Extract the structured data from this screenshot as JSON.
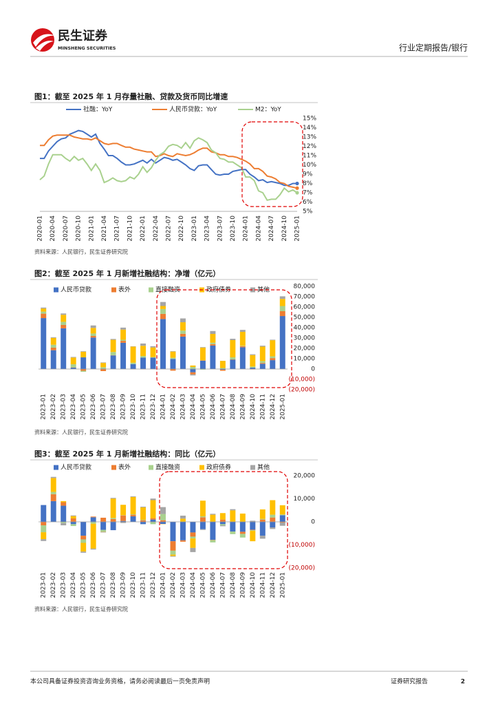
{
  "header": {
    "logo_cn": "民生证券",
    "logo_en": "MINSHENG SECURITIES",
    "report_type": "行业定期报告/银行"
  },
  "chart_data": [
    {
      "type": "line",
      "title": "图1：截至 2025 年 1 月存量社融、贷款及货币同比增速",
      "source": "资料来源：人民银行，民生证券研究院",
      "categories": [
        "2020-01",
        null,
        null,
        "2020-04",
        null,
        null,
        "2020-07",
        null,
        null,
        "2020-10",
        null,
        null,
        "2021-01",
        null,
        null,
        "2021-04",
        null,
        null,
        "2021-07",
        null,
        null,
        "2021-10",
        null,
        null,
        "2022-01",
        null,
        null,
        "2022-04",
        null,
        null,
        "2022-07",
        null,
        null,
        "2022-10",
        null,
        null,
        "2023-01",
        null,
        null,
        "2023-04",
        null,
        null,
        "2023-07",
        null,
        null,
        "2023-10",
        null,
        null,
        "2024-01",
        null,
        null,
        "2024-04",
        null,
        null,
        "2024-07",
        null,
        null,
        "2024-10",
        null,
        null,
        "2025-01"
      ],
      "series": [
        {
          "name": "社融：YoY",
          "color": "#4472c4",
          "values": [
            10.7,
            10.7,
            11.5,
            12.0,
            12.5,
            12.8,
            12.9,
            13.3,
            13.5,
            13.7,
            13.6,
            13.3,
            13.0,
            13.3,
            12.3,
            11.7,
            11.0,
            11.0,
            10.7,
            10.3,
            10.0,
            10.0,
            10.1,
            10.3,
            10.5,
            10.2,
            10.6,
            10.2,
            10.5,
            10.8,
            10.7,
            10.5,
            10.6,
            10.3,
            10.0,
            9.6,
            9.4,
            9.9,
            10.0,
            10.0,
            9.5,
            9.0,
            8.9,
            9.0,
            9.0,
            9.3,
            9.4,
            9.5,
            9.5,
            9.0,
            8.7,
            8.3,
            8.4,
            8.1,
            8.2,
            8.1,
            8.0,
            7.8,
            7.8,
            8.0,
            8.0
          ]
        },
        {
          "name": "人民币贷款：YoY",
          "color": "#ed7d31",
          "values": [
            12.1,
            12.1,
            12.7,
            13.1,
            13.2,
            13.2,
            13.2,
            13.2,
            13.0,
            12.9,
            12.8,
            12.8,
            12.7,
            12.9,
            12.6,
            12.3,
            12.2,
            12.3,
            12.3,
            12.1,
            11.9,
            11.9,
            11.7,
            11.6,
            11.5,
            11.4,
            11.4,
            10.9,
            11.0,
            11.2,
            11.0,
            10.9,
            11.2,
            11.1,
            11.0,
            11.1,
            11.3,
            11.6,
            11.8,
            11.8,
            11.4,
            11.3,
            11.1,
            11.1,
            10.9,
            10.9,
            10.8,
            10.6,
            10.4,
            10.1,
            9.6,
            9.6,
            9.3,
            8.8,
            8.7,
            8.5,
            8.1,
            8.0,
            7.7,
            7.6,
            7.5
          ]
        },
        {
          "name": "M2：YoY",
          "color": "#a9d18e",
          "values": [
            8.4,
            8.8,
            10.1,
            11.1,
            11.1,
            11.1,
            10.7,
            10.4,
            10.9,
            10.5,
            10.7,
            10.1,
            9.4,
            10.1,
            9.4,
            8.1,
            8.3,
            8.6,
            8.3,
            8.2,
            8.3,
            8.7,
            8.5,
            9.0,
            9.8,
            9.2,
            9.7,
            10.5,
            11.1,
            11.4,
            12.0,
            12.2,
            12.1,
            11.8,
            12.4,
            11.8,
            12.6,
            12.9,
            12.7,
            12.4,
            11.6,
            11.3,
            10.7,
            10.6,
            10.3,
            10.3,
            10.0,
            9.7,
            8.7,
            8.7,
            8.3,
            7.2,
            7.0,
            6.2,
            6.3,
            6.3,
            6.8,
            7.5,
            7.1,
            7.3,
            7.0
          ]
        }
      ],
      "ylim": [
        5,
        15
      ],
      "yticks": [
        {
          "value": 5,
          "label": "5%"
        },
        {
          "value": 6,
          "label": "6%"
        },
        {
          "value": 7,
          "label": "7%"
        },
        {
          "value": 8,
          "label": "8%"
        },
        {
          "value": 9,
          "label": "9%"
        },
        {
          "value": 10,
          "label": "10%"
        },
        {
          "value": 11,
          "label": "11%"
        },
        {
          "value": 12,
          "label": "12%"
        },
        {
          "value": 13,
          "label": "13%"
        },
        {
          "value": 14,
          "label": "14%"
        },
        {
          "value": 15,
          "label": "15%"
        }
      ],
      "grid": false,
      "legend": "top"
    },
    {
      "type": "bar",
      "stacked": true,
      "title": "图2：截至 2025 年 1 月新增社融结构：净增（亿元）",
      "source": "资料来源：人民银行，民生证券研究院",
      "categories": [
        "2023-01",
        "2023-02",
        "2023-03",
        "2023-04",
        "2023-05",
        "2023-06",
        "2023-07",
        "2023-08",
        "2023-09",
        "2023-10",
        "2023-11",
        "2023-12",
        "2024-01",
        "2024-02",
        "2024-03",
        "2024-04",
        "2024-05",
        "2024-06",
        "2024-07",
        "2024-08",
        "2024-09",
        "2024-10",
        "2024-11",
        "2024-12",
        "2025-01"
      ],
      "series": [
        {
          "name": "人民币贷款",
          "color": "#4472c4",
          "values": [
            49300,
            18200,
            39400,
            1400,
            11300,
            30500,
            300,
            13200,
            25400,
            4800,
            11100,
            11000,
            48400,
            9800,
            31400,
            -3200,
            8100,
            22700,
            -700,
            9000,
            21100,
            1400,
            5100,
            8600,
            51300
          ]
        },
        {
          "name": "表外",
          "color": "#ed7d31",
          "values": [
            4300,
            2500,
            3300,
            200,
            -1700,
            1500,
            -2000,
            200,
            1900,
            -200,
            -200,
            100,
            5000,
            -1600,
            2700,
            -2000,
            300,
            1400,
            -1000,
            300,
            1000,
            -400,
            800,
            2000,
            4700
          ]
        },
        {
          "name": "直接融资",
          "color": "#a9d18e",
          "values": [
            2000,
            2800,
            3000,
            3000,
            -1000,
            2400,
            1500,
            3100,
            1000,
            1300,
            1500,
            500,
            4700,
            1100,
            3100,
            2000,
            -600,
            1400,
            1000,
            2000,
            400,
            1000,
            1800,
            1700,
            5000
          ]
        },
        {
          "name": "政府债券",
          "color": "#ffc000",
          "values": [
            3000,
            6600,
            6800,
            6500,
            5400,
            5400,
            4100,
            11800,
            9900,
            15600,
            9900,
            9300,
            2900,
            6000,
            8100,
            1400,
            12300,
            8500,
            6900,
            16700,
            13500,
            11100,
            14000,
            15600,
            6900
          ]
        },
        {
          "name": "其他",
          "color": "#a5a5a5",
          "values": [
            900,
            700,
            1300,
            600,
            500,
            2400,
            500,
            800,
            1900,
            300,
            2200,
            1200,
            3900,
            400,
            3700,
            -1000,
            500,
            2800,
            100,
            1300,
            1900,
            800,
            900,
            500,
            2500
          ]
        }
      ],
      "ylim": [
        -20000,
        80000
      ],
      "yticks": [
        {
          "value": -20000,
          "label": "(20,000)"
        },
        {
          "value": -10000,
          "label": "(10,000)"
        },
        0,
        {
          "value": 10000,
          "label": "10,000"
        },
        {
          "value": 20000,
          "label": "20,000"
        },
        {
          "value": 30000,
          "label": "30,000"
        },
        {
          "value": 40000,
          "label": "40,000"
        },
        {
          "value": 50000,
          "label": "50,000"
        },
        {
          "value": 60000,
          "label": "60,000"
        },
        {
          "value": 70000,
          "label": "70,000"
        },
        {
          "value": 80000,
          "label": "80,000"
        }
      ],
      "grid": false,
      "legend": "top"
    },
    {
      "type": "bar",
      "stacked": true,
      "title": "图3：截至 2025 年 1 月新增社融结构：同比（亿元）",
      "source": "资料来源：人民银行，民生证券研究院",
      "categories": [
        "2023-01",
        "2023-02",
        "2023-03",
        "2023-04",
        "2023-05",
        "2023-06",
        "2023-07",
        "2023-08",
        "2023-09",
        "2023-10",
        "2023-11",
        "2023-12",
        "2024-01",
        "2024-02",
        "2024-03",
        "2024-04",
        "2024-05",
        "2024-06",
        "2024-07",
        "2024-08",
        "2024-09",
        "2024-10",
        "2024-11",
        "2024-12",
        "2025-01"
      ],
      "series": [
        {
          "name": "人民币贷款",
          "color": "#4472c4",
          "values": [
            7300,
            9000,
            7000,
            -1000,
            -6000,
            2000,
            -3500,
            -3600,
            400,
            2400,
            -1000,
            1000,
            -900,
            -8400,
            -8000,
            -4600,
            -3200,
            -7800,
            -1000,
            -4200,
            -4300,
            -3400,
            -6000,
            -2400,
            2900
          ]
        },
        {
          "name": "表外",
          "color": "#ed7d31",
          "values": [
            -1500,
            3000,
            1500,
            1500,
            -1600,
            300,
            1800,
            1200,
            2400,
            700,
            700,
            600,
            700,
            -4100,
            -600,
            -1800,
            2000,
            -100,
            1000,
            100,
            -900,
            -200,
            1000,
            1900,
            -300
          ]
        },
        {
          "name": "直接融资",
          "color": "#a9d18e",
          "values": [
            -3000,
            1000,
            -500,
            -800,
            -1500,
            -800,
            -700,
            500,
            100,
            200,
            200,
            -1000,
            2700,
            -1700,
            100,
            -800,
            400,
            -1000,
            -500,
            -1100,
            -1600,
            -300,
            300,
            1200,
            300
          ]
        },
        {
          "name": "政府债券",
          "color": "#ffc000",
          "values": [
            -3000,
            6000,
            500,
            1000,
            -3800,
            -10800,
            -100,
            8400,
            4500,
            7500,
            5400,
            7800,
            -100,
            -600,
            1300,
            -4100,
            6800,
            3100,
            2800,
            4900,
            3600,
            -4500,
            4100,
            6300,
            4000
          ]
        },
        {
          "name": "其他",
          "color": "#a5a5a5",
          "values": [
            -800,
            500,
            -1000,
            300,
            -500,
            -400,
            -300,
            300,
            -500,
            300,
            300,
            700,
            3000,
            -300,
            1300,
            -1800,
            -300,
            400,
            -400,
            500,
            0,
            500,
            -1300,
            -700,
            -1400
          ]
        }
      ],
      "ylim": [
        -20000,
        20000
      ],
      "yticks": [
        {
          "value": -20000,
          "label": "(20,000)"
        },
        {
          "value": -10000,
          "label": "(10,000)"
        },
        0,
        {
          "value": 10000,
          "label": "10,000"
        },
        {
          "value": 20000,
          "label": "20,000"
        }
      ],
      "grid": false,
      "legend": "top"
    }
  ],
  "footer": {
    "disclaimer": "本公司具备证券投资咨询业务资格，请务必阅读最后一页免责声明",
    "label": "证券研究报告",
    "page": 2
  }
}
